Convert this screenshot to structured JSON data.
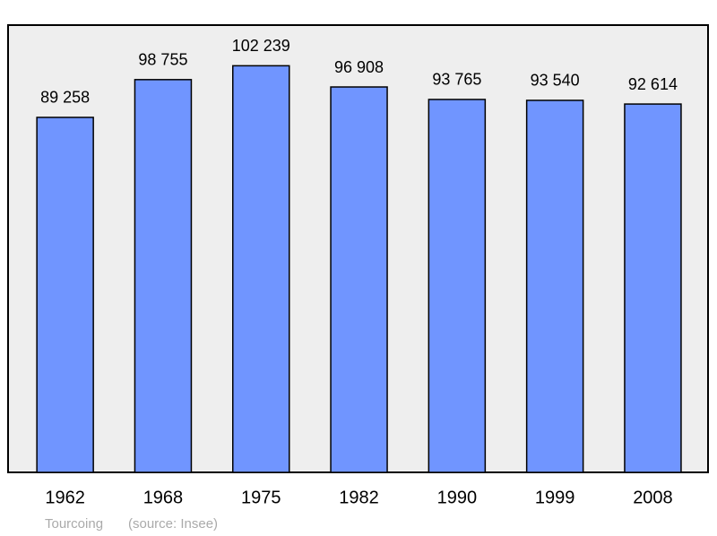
{
  "chart_data": {
    "type": "bar",
    "categories": [
      "1962",
      "1968",
      "1975",
      "1982",
      "1990",
      "1999",
      "2008"
    ],
    "values": [
      89258,
      98755,
      102239,
      96908,
      93765,
      93540,
      92614
    ],
    "value_labels": [
      "89 258",
      "98 755",
      "102 239",
      "96 908",
      "93 765",
      "93 540",
      "92 614"
    ],
    "color": "#7095ff",
    "ylim": [
      0,
      112463
    ],
    "subtitle": "Tourcoing",
    "source": "(source: Insee)"
  }
}
